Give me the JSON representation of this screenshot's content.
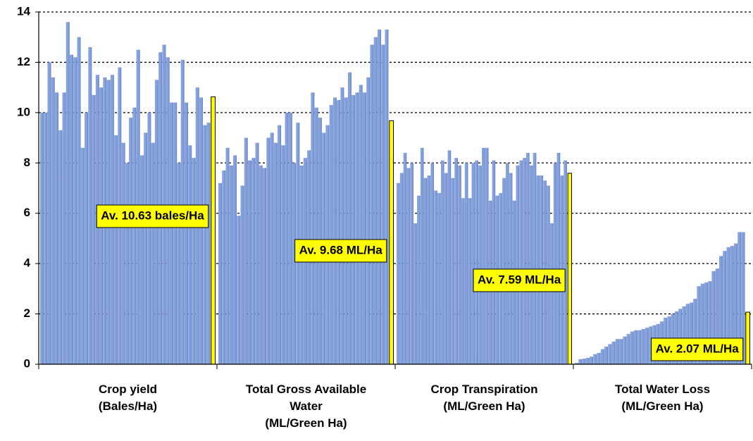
{
  "chart_data": {
    "type": "grouped-bar",
    "ylim": [
      0,
      14
    ],
    "yticks": [
      0,
      2,
      4,
      6,
      8,
      10,
      12,
      14
    ],
    "grid": true,
    "bar_color": "#86a2dc",
    "average_color": "#ffff00",
    "groups": [
      {
        "label": [
          "Crop yield",
          "(Bales/Ha)"
        ],
        "values": [
          10.0,
          10.0,
          12.0,
          11.4,
          10.8,
          9.3,
          10.8,
          13.6,
          12.3,
          12.2,
          13.0,
          8.6,
          10.0,
          12.6,
          10.7,
          11.5,
          11.0,
          11.4,
          11.3,
          11.5,
          9.1,
          11.8,
          8.8,
          8.0,
          9.8,
          10.2,
          12.5,
          8.3,
          9.2,
          10.0,
          8.8,
          11.3,
          12.4,
          12.7,
          12.2,
          10.4,
          10.4,
          8.0,
          12.1,
          10.4,
          8.7,
          8.2,
          11.0,
          10.6,
          9.5,
          9.6
        ],
        "average": 10.63,
        "average_label": "Av. 10.63 bales/Ha"
      },
      {
        "label": [
          "Total Gross Available",
          "Water",
          "(ML/Green Ha)"
        ],
        "values": [
          7.2,
          7.7,
          8.6,
          7.9,
          8.3,
          5.9,
          7.1,
          9.0,
          8.1,
          8.2,
          8.8,
          7.9,
          7.8,
          9.0,
          9.2,
          8.8,
          9.5,
          8.7,
          10.0,
          10.0,
          8.0,
          9.6,
          7.9,
          8.2,
          8.5,
          10.8,
          10.2,
          9.8,
          9.2,
          9.5,
          10.3,
          10.6,
          10.5,
          11.0,
          10.6,
          11.6,
          10.7,
          10.8,
          11.1,
          10.8,
          11.4,
          12.7,
          13.0,
          13.3,
          12.7,
          13.3
        ],
        "average": 9.68,
        "average_label": "Av. 9.68 ML/Ha"
      },
      {
        "label": [
          "Crop Transpiration",
          "(ML/Green Ha)"
        ],
        "values": [
          7.2,
          7.6,
          8.4,
          7.8,
          8.0,
          5.6,
          6.7,
          8.6,
          7.4,
          7.5,
          8.0,
          6.9,
          6.8,
          8.1,
          7.6,
          8.5,
          7.4,
          8.2,
          7.9,
          6.6,
          8.0,
          6.6,
          8.0,
          8.1,
          7.9,
          8.6,
          8.6,
          6.5,
          8.1,
          6.7,
          6.8,
          7.4,
          8.0,
          7.6,
          6.5,
          7.9,
          8.1,
          8.2,
          8.4,
          7.9,
          8.4,
          7.5,
          7.5,
          7.3,
          7.1,
          5.6,
          8.0,
          8.4,
          7.5,
          8.1
        ],
        "average": 7.59,
        "average_label": "Av. 7.59 ML/Ha"
      },
      {
        "label": [
          "Total Water Loss",
          "(ML/Green Ha)"
        ],
        "values": [
          0.05,
          0.2,
          0.22,
          0.25,
          0.3,
          0.4,
          0.45,
          0.6,
          0.7,
          0.8,
          0.9,
          1.0,
          1.0,
          1.1,
          1.2,
          1.3,
          1.35,
          1.35,
          1.4,
          1.45,
          1.5,
          1.55,
          1.6,
          1.7,
          1.85,
          1.9,
          2.0,
          2.1,
          2.2,
          2.3,
          2.4,
          2.45,
          2.6,
          3.1,
          3.2,
          3.25,
          3.3,
          3.7,
          3.8,
          4.3,
          4.5,
          4.65,
          4.7,
          4.8,
          5.25,
          5.25
        ],
        "average": 2.07,
        "average_label": "Av. 2.07 ML/Ha"
      }
    ]
  }
}
